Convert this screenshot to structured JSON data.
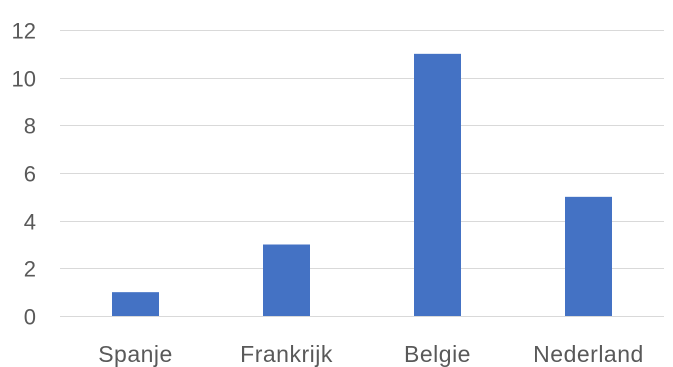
{
  "chart_data": {
    "type": "bar",
    "title": "",
    "xlabel": "",
    "ylabel": "",
    "categories": [
      "Spanje",
      "Frankrijk",
      "Belgie",
      "Nederland"
    ],
    "values": [
      1,
      3,
      11,
      5
    ],
    "ylim": [
      0,
      12
    ],
    "yticks": [
      "0",
      "2",
      "4",
      "6",
      "8",
      "10",
      "12"
    ],
    "grid": true,
    "legend": "none",
    "bar_color": "#4472c4",
    "grid_color": "#d9d9d9",
    "tick_label_color": "#595959"
  }
}
